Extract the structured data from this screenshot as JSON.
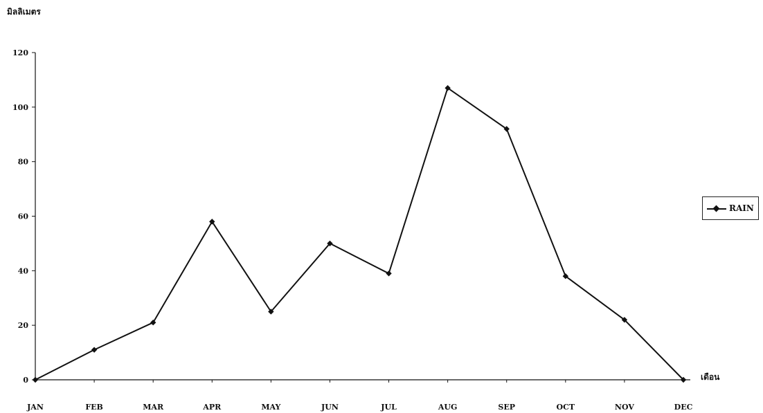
{
  "chart_data": {
    "type": "line",
    "title": "",
    "ylabel": "มิลลิเมตร",
    "xlabel": "เดือน",
    "categories": [
      "JAN",
      "FEB",
      "MAR",
      "APR",
      "MAY",
      "JUN",
      "JUL",
      "AUG",
      "SEP",
      "OCT",
      "NOV",
      "DEC"
    ],
    "series": [
      {
        "name": "RAIN",
        "values": [
          0,
          11,
          21,
          58,
          25,
          50,
          39,
          107,
          92,
          38,
          22,
          0
        ]
      }
    ],
    "ylim": [
      0,
      120
    ],
    "yticks": [
      0,
      20,
      40,
      60,
      80,
      100,
      120
    ],
    "grid": false,
    "legend_position": "right",
    "color": "#111111"
  }
}
